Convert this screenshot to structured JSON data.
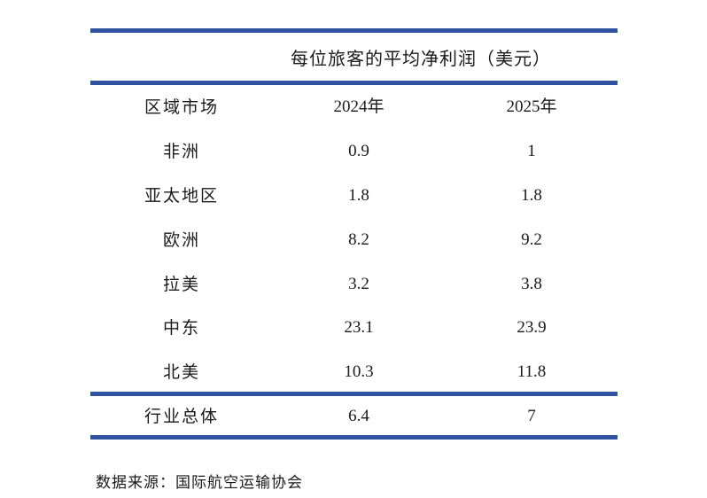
{
  "chart_data": {
    "type": "table",
    "title": "每位旅客的平均净利润（美元）",
    "columns": [
      "区域市场",
      "2024年",
      "2025年"
    ],
    "rows": [
      {
        "region": "非洲",
        "y2024": "0.9",
        "y2025": "1"
      },
      {
        "region": "亚太地区",
        "y2024": "1.8",
        "y2025": "1.8"
      },
      {
        "region": "欧洲",
        "y2024": "8.2",
        "y2025": "9.2"
      },
      {
        "region": "拉美",
        "y2024": "3.2",
        "y2025": "3.8"
      },
      {
        "region": "中东",
        "y2024": "23.1",
        "y2025": "23.9"
      },
      {
        "region": "北美",
        "y2024": "10.3",
        "y2025": "11.8"
      }
    ],
    "total": {
      "region": "行业总体",
      "y2024": "6.4",
      "y2025": "7"
    },
    "source": "数据来源：国际航空运输协会",
    "accent_color": "#2f52a0"
  }
}
